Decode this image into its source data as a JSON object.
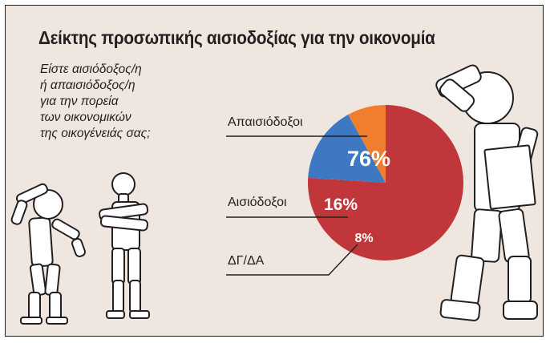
{
  "header": {
    "title": "Δείκτης προσωπικής αισιοδοξίας για την οικονομία"
  },
  "question": {
    "lines": [
      "Είστε αισιόδοξος/η",
      "ή απαισιόδοξος/η",
      "για την πορεία",
      "των οικονομικών",
      "της οικογένειάς σας;"
    ]
  },
  "colors": {
    "background": "#efe6df",
    "pessimists": "#c0363a",
    "optimists": "#3e78c2",
    "dk_na": "#ef7f2e",
    "figure_fill": "#ffffff",
    "ink": "#231f20"
  },
  "chart_data": {
    "type": "pie",
    "title": "Δείκτης προσωπικής αισιοδοξίας για την οικονομία",
    "slices": [
      {
        "label": "Απαισιόδοξοι",
        "value": 76,
        "value_label": "76%",
        "color": "#c0363a"
      },
      {
        "label": "Αισιόδοξοι",
        "value": 16,
        "value_label": "16%",
        "color": "#3e78c2"
      },
      {
        "label": "ΔΓ/ΔΑ",
        "value": 8,
        "value_label": "8%",
        "color": "#ef7f2e"
      }
    ],
    "legend": "none",
    "grid": false
  }
}
